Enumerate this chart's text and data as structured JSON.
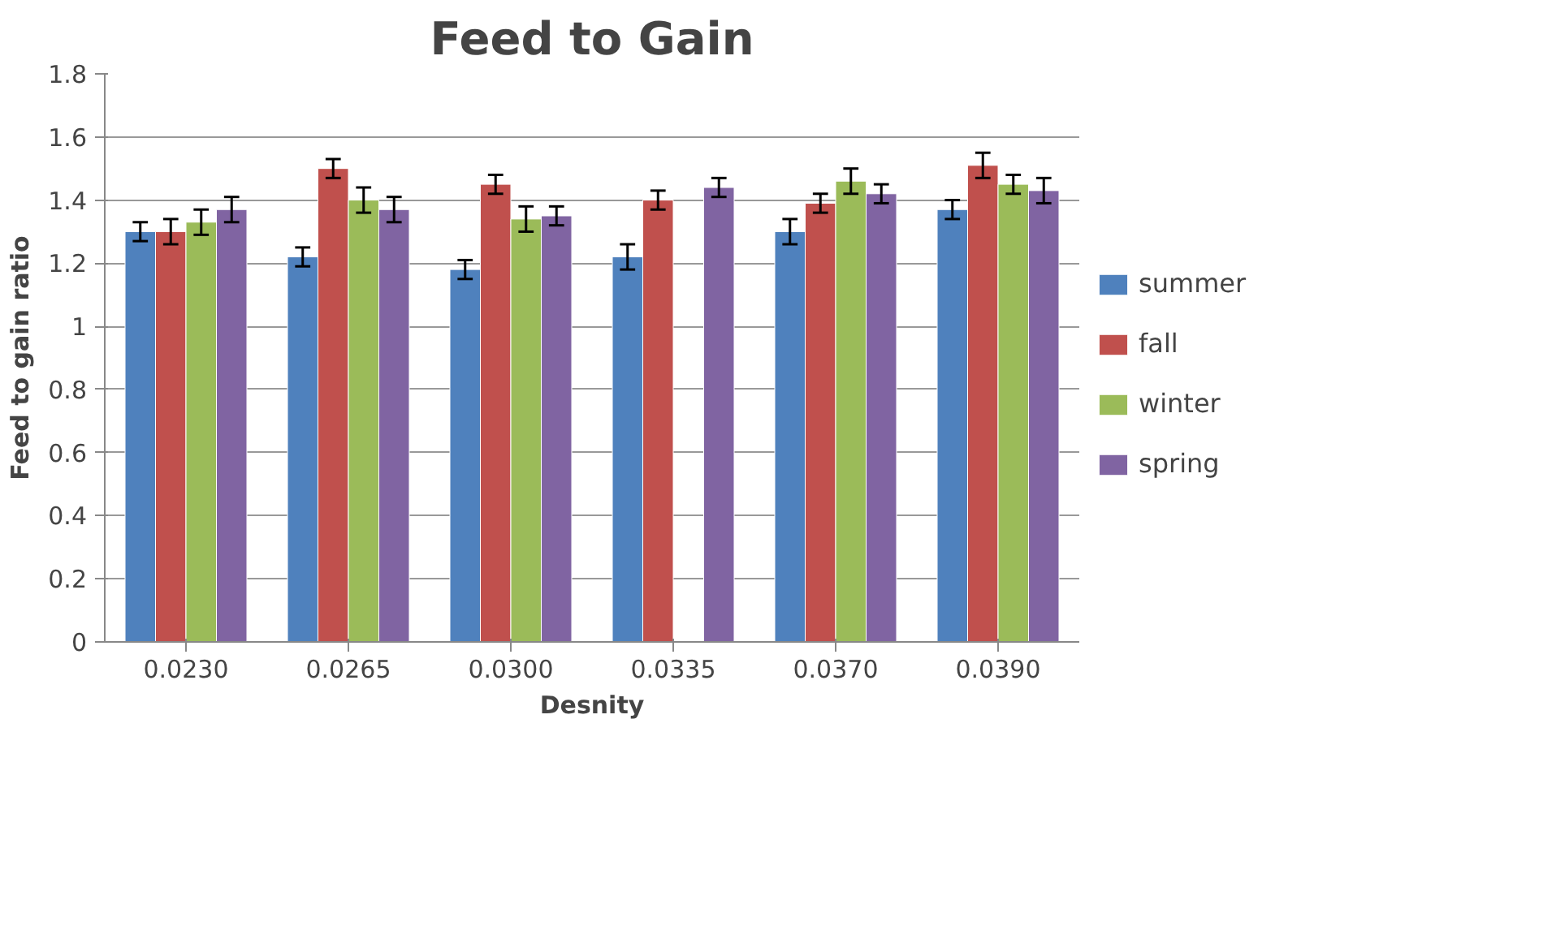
{
  "chart_data": {
    "type": "bar",
    "title": "Feed to Gain",
    "xlabel": "Desnity",
    "ylabel": "Feed to gain ratio",
    "categories": [
      "0.0230",
      "0.0265",
      "0.0300",
      "0.0335",
      "0.0370",
      "0.0390"
    ],
    "series": [
      {
        "name": "summer",
        "color": "#4f81bd",
        "values": [
          1.3,
          1.22,
          1.18,
          1.22,
          1.3,
          1.37
        ],
        "errors": [
          0.03,
          0.03,
          0.03,
          0.04,
          0.04,
          0.03
        ]
      },
      {
        "name": "fall",
        "color": "#c0504d",
        "values": [
          1.3,
          1.5,
          1.45,
          1.4,
          1.39,
          1.51
        ],
        "errors": [
          0.04,
          0.03,
          0.03,
          0.03,
          0.03,
          0.04
        ]
      },
      {
        "name": "winter",
        "color": "#9bbb59",
        "values": [
          1.33,
          1.4,
          1.34,
          null,
          1.46,
          1.45
        ],
        "errors": [
          0.04,
          0.04,
          0.04,
          null,
          0.04,
          0.03
        ]
      },
      {
        "name": "spring",
        "color": "#8064a2",
        "values": [
          1.37,
          1.37,
          1.35,
          1.44,
          1.42,
          1.43
        ],
        "errors": [
          0.04,
          0.04,
          0.03,
          0.03,
          0.03,
          0.04
        ]
      }
    ],
    "ylim": [
      0,
      1.8
    ],
    "yticks": [
      0,
      0.2,
      0.4,
      0.6,
      0.8,
      1,
      1.2,
      1.4,
      1.6,
      1.8
    ],
    "grid": "y",
    "legend": "right"
  }
}
